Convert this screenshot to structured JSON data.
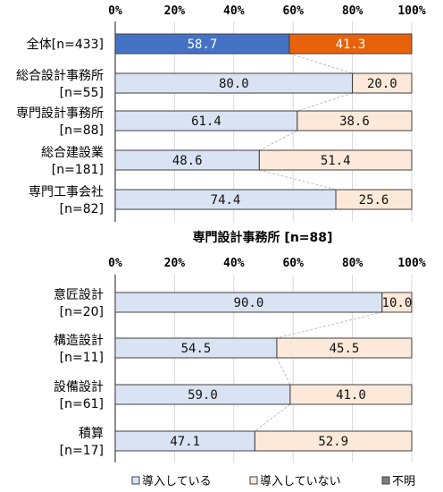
{
  "chart_data": [
    {
      "type": "bar",
      "orientation": "horizontal",
      "stacked": true,
      "title": "",
      "xlim": [
        0,
        100
      ],
      "x_ticks": [
        "0%",
        "20%",
        "40%",
        "60%",
        "80%",
        "100%"
      ],
      "categories": [
        [
          "全体[n=433]"
        ],
        [
          "総合設計事務所",
          "[n=55]"
        ],
        [
          "専門設計事務所",
          "[n=88]"
        ],
        [
          "総合建設業",
          "[n=181]"
        ],
        [
          "専門工事会社",
          "[n=82]"
        ]
      ],
      "series": [
        {
          "name": "導入している",
          "values": [
            58.7,
            80.0,
            61.4,
            48.6,
            74.4
          ],
          "labels": [
            "58.7",
            "80.0",
            "61.4",
            "48.6",
            "74.4"
          ]
        },
        {
          "name": "導入していない",
          "values": [
            41.3,
            20.0,
            38.6,
            51.4,
            25.6
          ],
          "labels": [
            "41.3",
            "20.0",
            "38.6",
            "51.4",
            "25.6"
          ]
        }
      ],
      "highlight_first_row_colors": [
        "#4472c4",
        "#e8620c"
      ],
      "series_line_connectors": true
    },
    {
      "type": "bar",
      "orientation": "horizontal",
      "stacked": true,
      "title": "専門設計事務所 [n=88]",
      "xlim": [
        0,
        100
      ],
      "x_ticks": [
        "0%",
        "20%",
        "40%",
        "60%",
        "80%",
        "100%"
      ],
      "categories": [
        [
          "意匠設計",
          "[n=20]"
        ],
        [
          "構造設計",
          "[n=11]"
        ],
        [
          "設備設計",
          "[n=61]"
        ],
        [
          "積算",
          "[n=17]"
        ]
      ],
      "series": [
        {
          "name": "導入している",
          "values": [
            90.0,
            54.5,
            59.0,
            47.1
          ],
          "labels": [
            "90.0",
            "54.5",
            "59.0",
            "47.1"
          ]
        },
        {
          "name": "導入していない",
          "values": [
            10.0,
            45.5,
            41.0,
            52.9
          ],
          "labels": [
            "10.0",
            "45.5",
            "41.0",
            "52.9"
          ]
        }
      ],
      "series_line_connectors": true
    }
  ],
  "legend": {
    "placement": "bottom-right",
    "items": [
      {
        "label": "導入している",
        "color": "#dae3f3"
      },
      {
        "label": "導入していない",
        "color": "#fde9d9"
      },
      {
        "label": "不明",
        "color": "#808080"
      }
    ]
  },
  "colors": {
    "dont_know": "#808080",
    "implemented_light": "#dae3f3",
    "not_implemented_light": "#fde9d9",
    "connector": "#bfbfbf",
    "bar_border": "#404040"
  }
}
